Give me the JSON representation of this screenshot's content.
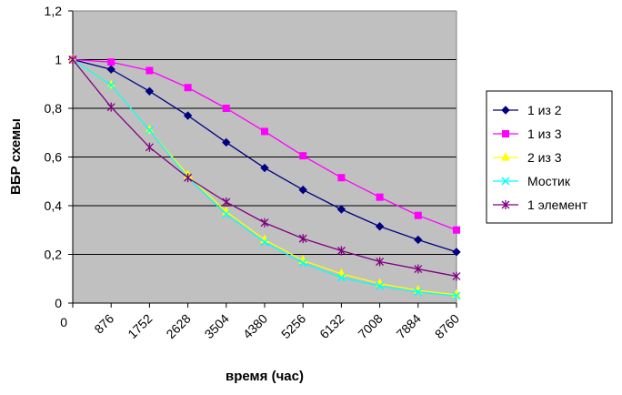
{
  "chart_data": {
    "type": "line",
    "title": "",
    "xlabel": "время (час)",
    "ylabel": "ВБР схемы",
    "x": [
      "0",
      "876",
      "1752",
      "2628",
      "3504",
      "4380",
      "5256",
      "6132",
      "7008",
      "7884",
      "8760"
    ],
    "ylim": [
      0,
      1.2
    ],
    "yticks": [
      "0",
      "0,2",
      "0,4",
      "0,6",
      "0,8",
      "1",
      "1,2"
    ],
    "grid": true,
    "legend_position": "right",
    "series": [
      {
        "name": "1 из 2",
        "color": "#000080",
        "marker": "diamond",
        "values": [
          1,
          0.96,
          0.87,
          0.77,
          0.66,
          0.555,
          0.465,
          0.385,
          0.315,
          0.26,
          0.21
        ]
      },
      {
        "name": "1 из 3",
        "color": "#FF00FF",
        "marker": "square",
        "values": [
          1,
          0.99,
          0.955,
          0.885,
          0.8,
          0.705,
          0.605,
          0.515,
          0.435,
          0.36,
          0.3
        ]
      },
      {
        "name": "2 из 3",
        "color": "#FFFF00",
        "marker": "triangle",
        "values": [
          1,
          0.895,
          0.71,
          0.525,
          0.375,
          0.26,
          0.175,
          0.12,
          0.08,
          0.052,
          0.034
        ]
      },
      {
        "name": "Мостик",
        "color": "#00FFFF",
        "marker": "x",
        "values": [
          1,
          0.895,
          0.71,
          0.515,
          0.365,
          0.25,
          0.165,
          0.105,
          0.07,
          0.045,
          0.03
        ]
      },
      {
        "name": "1 элемент",
        "color": "#800080",
        "marker": "star",
        "values": [
          1,
          0.805,
          0.64,
          0.515,
          0.415,
          0.33,
          0.265,
          0.215,
          0.17,
          0.14,
          0.11
        ]
      }
    ]
  }
}
